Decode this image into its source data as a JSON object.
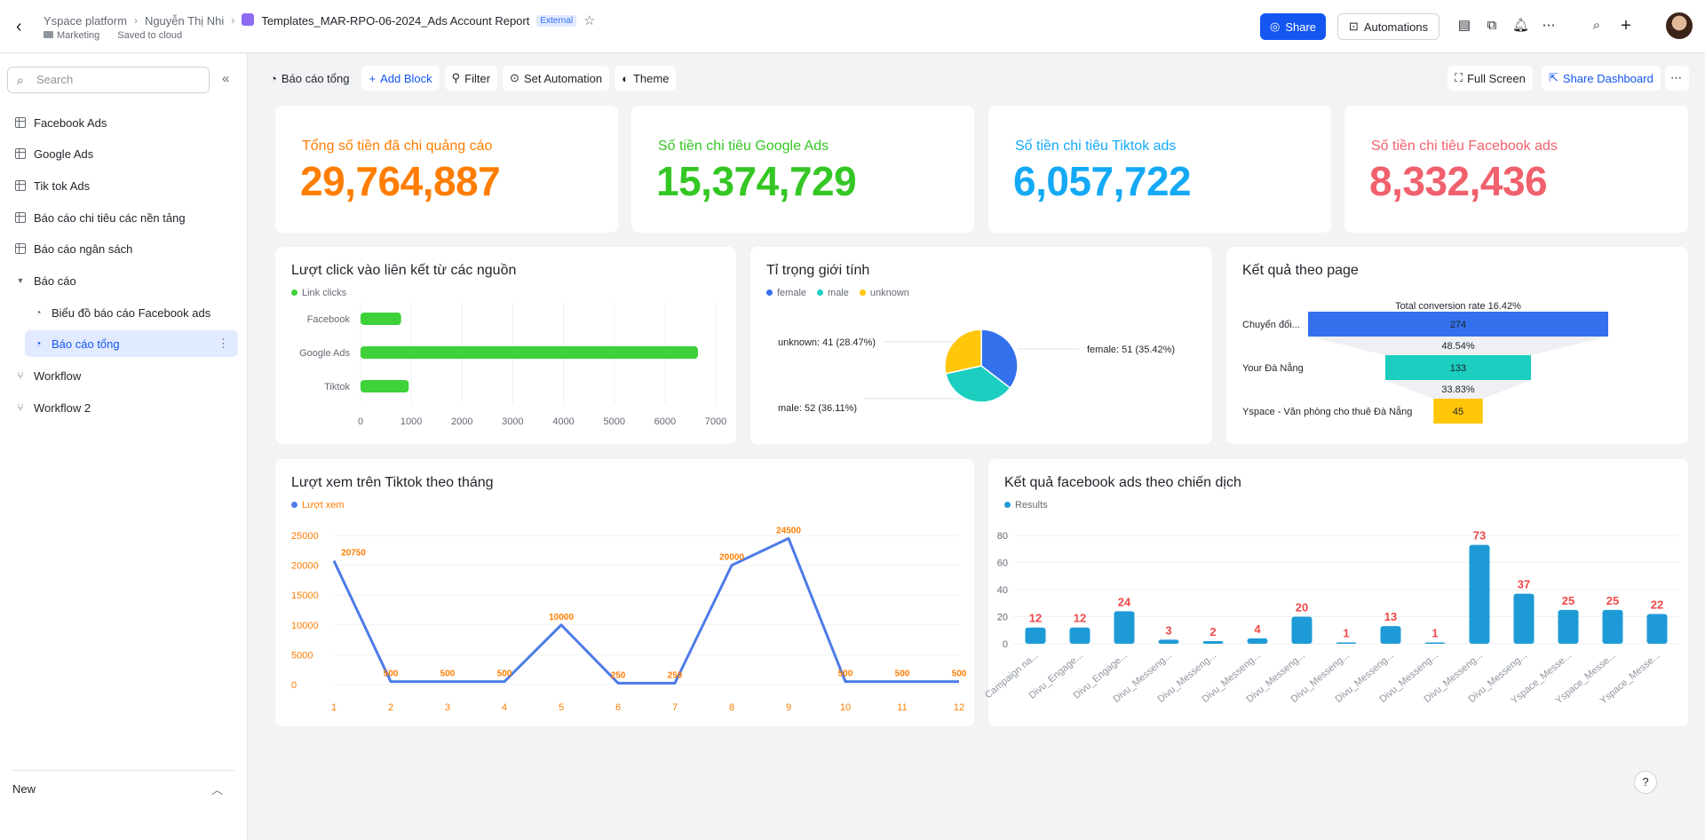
{
  "header": {
    "breadcrumbs": [
      "Yspace platform",
      "Nguyễn Thị Nhi"
    ],
    "doc_title": "Templates_MAR-RPO-06-2024_Ads Account Report",
    "badge": "External",
    "folder": "Marketing",
    "save_status": "Saved to cloud",
    "share_label": "Share",
    "automations_label": "Automations"
  },
  "sidebar": {
    "search_placeholder": "Search",
    "items": [
      {
        "label": "Facebook Ads",
        "icon": "table-icon"
      },
      {
        "label": "Google Ads",
        "icon": "table-icon"
      },
      {
        "label": "Tik tok Ads",
        "icon": "table-icon"
      },
      {
        "label": "Báo cáo chi tiêu các nền tảng",
        "icon": "table-icon"
      },
      {
        "label": "Báo cáo ngân sách",
        "icon": "table-icon"
      },
      {
        "label": "Báo cáo",
        "icon": "folder-caret-icon"
      },
      {
        "label": "Biểu đồ báo cáo Facebook ads",
        "icon": "dashboard-icon"
      },
      {
        "label": "Báo cáo tổng",
        "icon": "dashboard-icon"
      },
      {
        "label": "Workflow",
        "icon": "workflow-icon"
      },
      {
        "label": "Workflow 2",
        "icon": "workflow-icon"
      }
    ],
    "new_label": "New"
  },
  "toolbar": {
    "dashboard_name": "Báo cáo tổng",
    "add_block": "Add Block",
    "filter": "Filter",
    "set_automation": "Set Automation",
    "theme": "Theme",
    "full_screen": "Full Screen",
    "share_dashboard": "Share Dashboard"
  },
  "kpis": [
    {
      "label": "Tổng số tiền đã chi quảng cáo",
      "value": "29,764,887",
      "color": "#ff7d00"
    },
    {
      "label": "Số tiền chi tiêu Google Ads",
      "value": "15,374,729",
      "color": "#34c724"
    },
    {
      "label": "Số tiền chi tiêu Tiktok ads",
      "value": "6,057,722",
      "color": "#14a9f5"
    },
    {
      "label": "Số tiền chi tiêu Facebook ads",
      "value": "8,332,436",
      "color": "#f0616d"
    }
  ],
  "chart_data": [
    {
      "type": "bar",
      "orientation": "horizontal",
      "title": "Lượt click vào liên kết từ các nguồn",
      "categories": [
        "Facebook",
        "Google Ads",
        "Tiktok"
      ],
      "series": [
        {
          "name": "Link clicks",
          "values": [
            800,
            6650,
            950
          ]
        }
      ],
      "xlim": [
        0,
        7000
      ],
      "ticks": [
        0,
        1000,
        2000,
        3000,
        4000,
        5000,
        6000,
        7000
      ],
      "color": "#3ed13a"
    },
    {
      "type": "pie",
      "title": "Tỉ trọng giới tính",
      "slices": [
        {
          "name": "female",
          "value": 51,
          "percent": "35.42%",
          "label": "female: 51 (35.42%)",
          "color": "#3370eb"
        },
        {
          "name": "male",
          "value": 52,
          "percent": "36.11%",
          "label": "male: 52 (36.11%)",
          "color": "#1bcebf"
        },
        {
          "name": "unknown",
          "value": 41,
          "percent": "28.47%",
          "label": "unknown: 41 (28.47%)",
          "color": "#ffc60a"
        }
      ]
    },
    {
      "type": "funnel",
      "title": "Kết quả theo page",
      "total_label": "Total conversion rate 16.42%",
      "stages": [
        {
          "name": "Chuyển đổi...",
          "value": 274,
          "color": "#3370eb"
        },
        {
          "name": "Your Đà Nẵng",
          "value": 133,
          "color": "#1bcebf"
        },
        {
          "name": "Yspace - Văn phòng cho thuê Đà Nẵng",
          "value": 45,
          "color": "#ffc60a"
        }
      ],
      "rates": [
        "48.54%",
        "33.83%"
      ]
    },
    {
      "type": "line",
      "title": "Lượt xem trên Tiktok theo tháng",
      "series": [
        {
          "name": "Lượt xem",
          "values": [
            20750,
            500,
            500,
            500,
            10000,
            250,
            250,
            20000,
            24500,
            500,
            500,
            500
          ],
          "labels": [
            "20750",
            "500",
            "500",
            "500",
            "10000",
            "250",
            "250",
            "20000",
            "24500",
            "500",
            "500",
            "500"
          ]
        }
      ],
      "x": [
        1,
        2,
        3,
        4,
        5,
        6,
        7,
        8,
        9,
        10,
        11,
        12
      ],
      "ylim": [
        0,
        25000
      ],
      "yticks": [
        0,
        5000,
        10000,
        15000,
        20000,
        25000
      ],
      "color": "#4e7be8"
    },
    {
      "type": "bar",
      "title": "Kết quả facebook ads theo chiến dịch",
      "categories": [
        "Campaign na...",
        "Divu_Engage...",
        "Divu_Engage...",
        "Divu_Messeng...",
        "Divu_Messeng...",
        "Divu_Messeng...",
        "Divu_Messeng...",
        "Divu_Messeng...",
        "Divu_Messeng...",
        "Divu_Messeng...",
        "Divu_Messeng...",
        "Divu_Messeng...",
        "Yspace_Messe...",
        "Yspace_Messe...",
        "Yspace_Messe..."
      ],
      "series": [
        {
          "name": "Results",
          "values": [
            12,
            12,
            24,
            3,
            2,
            4,
            20,
            1,
            13,
            1,
            73,
            37,
            25,
            25,
            22
          ]
        }
      ],
      "ylim": [
        0,
        80
      ],
      "yticks": [
        0,
        20,
        40,
        60,
        80
      ],
      "color": "#1e9bd7"
    }
  ]
}
